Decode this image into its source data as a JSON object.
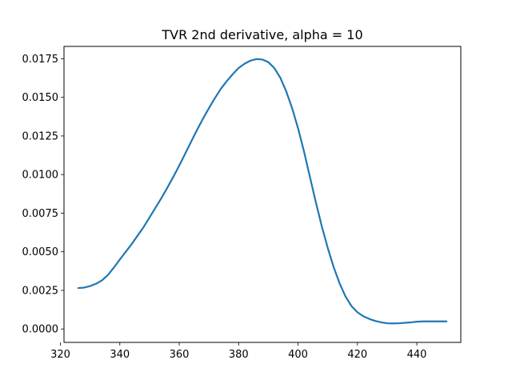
{
  "chart_data": {
    "type": "line",
    "title": "TVR 2nd derivative, alpha = 10",
    "xlabel": "",
    "ylabel": "",
    "xlim": [
      321.2,
      454.8
    ],
    "ylim": [
      -0.00087,
      0.0183
    ],
    "xticks": [
      320,
      340,
      360,
      380,
      400,
      420,
      440
    ],
    "xtick_labels": [
      "320",
      "340",
      "360",
      "380",
      "400",
      "420",
      "440"
    ],
    "yticks": [
      0.0,
      0.0025,
      0.005,
      0.0075,
      0.01,
      0.0125,
      0.015,
      0.0175
    ],
    "ytick_labels": [
      "0.0000",
      "0.0025",
      "0.0050",
      "0.0075",
      "0.0100",
      "0.0125",
      "0.0150",
      "0.0175"
    ],
    "grid": false,
    "series": [
      {
        "color": "#1f77b4",
        "x": [
          326,
          328,
          330,
          332,
          334,
          336,
          338,
          340,
          342,
          344,
          346,
          348,
          350,
          352,
          354,
          356,
          358,
          360,
          362,
          364,
          366,
          368,
          370,
          372,
          374,
          376,
          378,
          380,
          382,
          384,
          386,
          388,
          390,
          392,
          394,
          396,
          398,
          400,
          402,
          404,
          406,
          408,
          410,
          412,
          414,
          416,
          418,
          420,
          422,
          424,
          426,
          428,
          430,
          432,
          434,
          436,
          438,
          440,
          442,
          444,
          446,
          448,
          450
        ],
        "y": [
          0.00265,
          0.00268,
          0.00278,
          0.00293,
          0.00315,
          0.0035,
          0.00398,
          0.0045,
          0.005,
          0.0055,
          0.00605,
          0.0066,
          0.00722,
          0.00785,
          0.00848,
          0.00915,
          0.00985,
          0.01058,
          0.01135,
          0.01213,
          0.01289,
          0.01362,
          0.0143,
          0.01495,
          0.01555,
          0.01605,
          0.0165,
          0.0169,
          0.01718,
          0.01738,
          0.01748,
          0.01745,
          0.01728,
          0.0169,
          0.01628,
          0.0154,
          0.0143,
          0.013,
          0.0115,
          0.00985,
          0.0082,
          0.00665,
          0.00525,
          0.004,
          0.00295,
          0.0021,
          0.00148,
          0.00108,
          0.00082,
          0.00065,
          0.00052,
          0.00043,
          0.00037,
          0.00036,
          0.00037,
          0.0004,
          0.00043,
          0.00047,
          0.00049,
          0.00049,
          0.00049,
          0.00049,
          0.00049
        ]
      }
    ]
  }
}
